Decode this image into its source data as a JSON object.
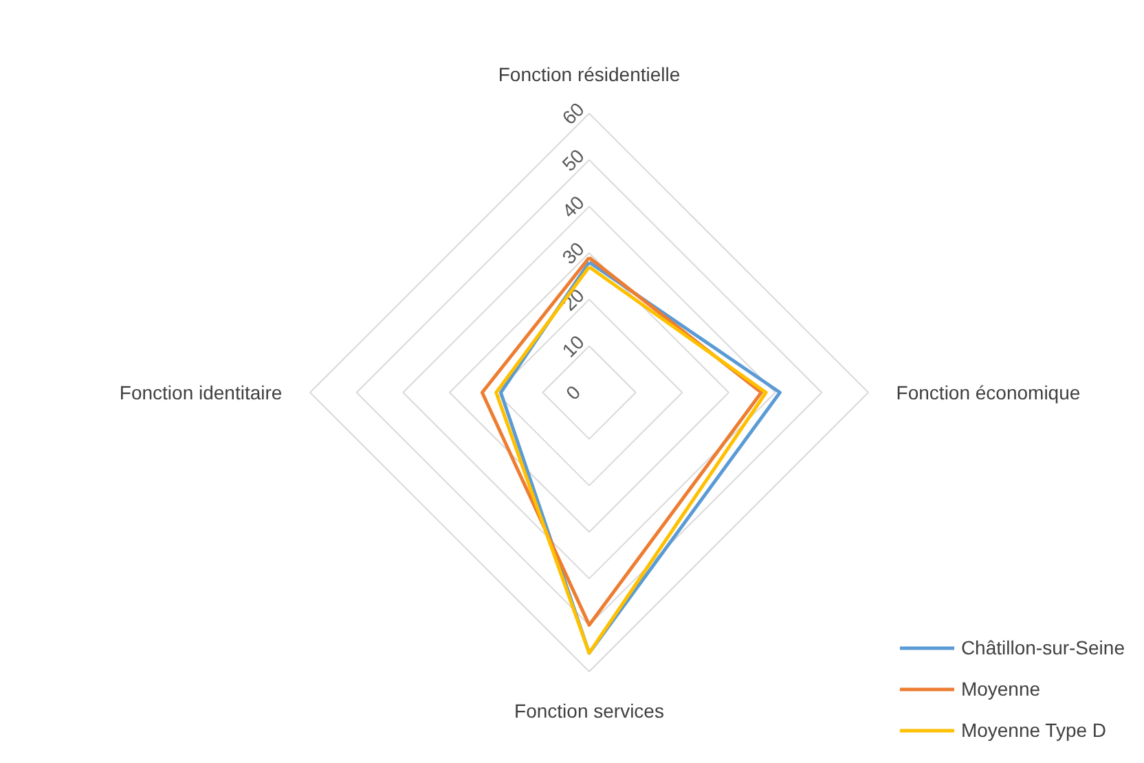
{
  "chart_data": {
    "type": "radar",
    "categories": [
      "Fonction résidentielle",
      "Fonction économique",
      "Fonction services",
      "Fonction identitaire"
    ],
    "series": [
      {
        "name": "Châtillon-sur-Seine",
        "color": "#5b9bd5",
        "values": [
          28,
          41,
          56,
          19
        ]
      },
      {
        "name": "Moyenne",
        "color": "#ed7d31",
        "values": [
          29,
          37,
          50,
          23
        ]
      },
      {
        "name": "Moyenne Type D",
        "color": "#ffc000",
        "values": [
          27,
          38,
          56,
          20
        ]
      }
    ],
    "ylim": [
      0,
      60
    ],
    "yticks": [
      0,
      10,
      20,
      30,
      40,
      50,
      60
    ],
    "grid": true,
    "legend": "bottom right"
  }
}
